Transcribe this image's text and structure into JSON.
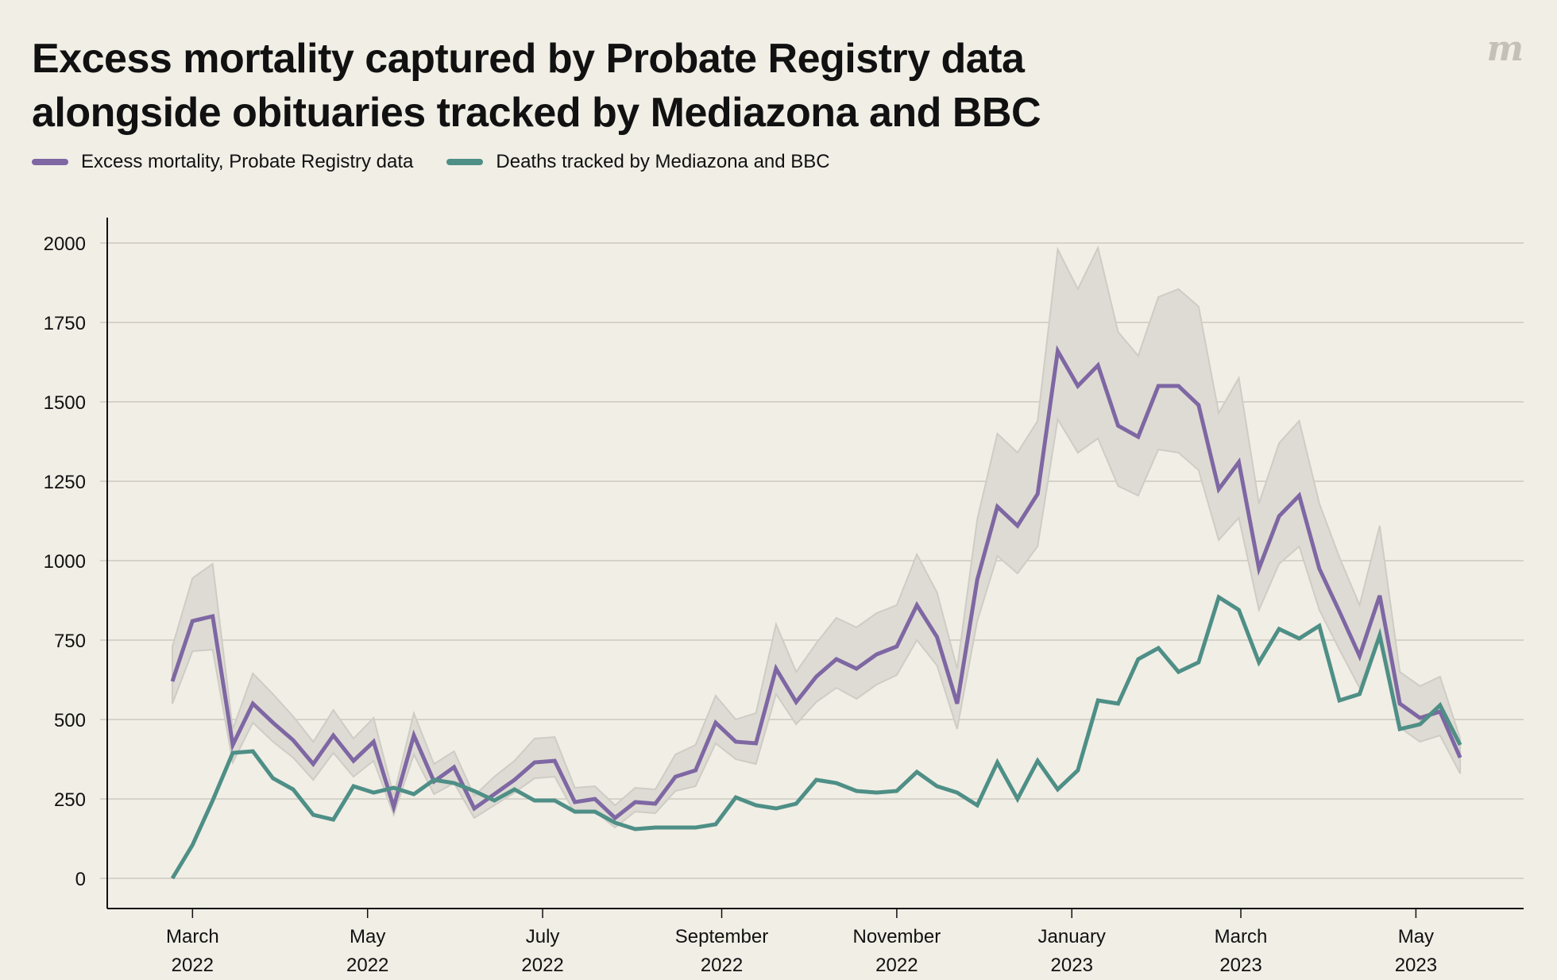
{
  "header": {
    "title_line1": "Excess mortality captured by Probate Registry data",
    "title_line2": "alongside obituaries tracked by Mediazona and BBC",
    "logo": "m"
  },
  "legend": [
    {
      "label": "Excess mortality, Probate Registry data",
      "color": "#7e67a3"
    },
    {
      "label": "Deaths tracked by Mediazona and BBC",
      "color": "#4e8f86"
    }
  ],
  "chart_data": {
    "type": "line",
    "title": "Excess mortality captured by Probate Registry data alongside obituaries tracked by Mediazona and BBC",
    "xlabel": "",
    "ylabel": "",
    "ylim": [
      0,
      2000
    ],
    "yticks": [
      0,
      250,
      500,
      750,
      1000,
      1250,
      1500,
      1750,
      2000
    ],
    "xticks": [
      {
        "week": 1,
        "month": "March",
        "year": "2022"
      },
      {
        "week": 9.7,
        "month": "May",
        "year": "2022"
      },
      {
        "week": 18.4,
        "month": "July",
        "year": "2022"
      },
      {
        "week": 27.3,
        "month": "September",
        "year": "2022"
      },
      {
        "week": 36,
        "month": "November",
        "year": "2022"
      },
      {
        "week": 44.7,
        "month": "January",
        "year": "2023"
      },
      {
        "week": 53.1,
        "month": "March",
        "year": "2023"
      },
      {
        "week": 61.8,
        "month": "May",
        "year": "2023"
      }
    ],
    "grid": true,
    "legend_position": "top-left",
    "x_unit": "week index (weekly data starting late Feb 2022)",
    "series": [
      {
        "name": "Excess mortality, Probate Registry data",
        "color": "#7e67a3",
        "values": [
          620,
          810,
          825,
          420,
          550,
          490,
          435,
          360,
          450,
          370,
          430,
          225,
          450,
          305,
          350,
          220,
          265,
          310,
          365,
          370,
          240,
          250,
          190,
          240,
          235,
          320,
          340,
          490,
          430,
          425,
          660,
          555,
          635,
          690,
          660,
          705,
          730,
          860,
          760,
          550,
          940,
          1170,
          1110,
          1210,
          1660,
          1550,
          1615,
          1425,
          1390,
          1550,
          1550,
          1490,
          1225,
          1310,
          975,
          1140,
          1205,
          975,
          840,
          700,
          890,
          550,
          505,
          525,
          380
        ],
        "band_upper": [
          730,
          945,
          990,
          470,
          645,
          580,
          510,
          430,
          530,
          440,
          505,
          260,
          520,
          360,
          400,
          260,
          320,
          370,
          440,
          445,
          285,
          290,
          230,
          285,
          280,
          390,
          420,
          575,
          500,
          520,
          800,
          650,
          740,
          820,
          790,
          835,
          860,
          1020,
          900,
          660,
          1130,
          1400,
          1340,
          1440,
          1980,
          1855,
          1985,
          1720,
          1645,
          1830,
          1855,
          1800,
          1465,
          1575,
          1180,
          1370,
          1440,
          1180,
          1010,
          860,
          1110,
          650,
          605,
          635,
          440
        ],
        "band_lower": [
          550,
          715,
          720,
          365,
          490,
          430,
          380,
          310,
          395,
          320,
          370,
          200,
          390,
          265,
          300,
          190,
          230,
          270,
          315,
          320,
          205,
          210,
          160,
          210,
          205,
          275,
          290,
          425,
          375,
          360,
          580,
          485,
          555,
          600,
          565,
          610,
          640,
          750,
          670,
          470,
          810,
          1015,
          960,
          1045,
          1445,
          1340,
          1385,
          1235,
          1205,
          1350,
          1340,
          1285,
          1065,
          1135,
          845,
          990,
          1045,
          845,
          720,
          600,
          770,
          475,
          430,
          450,
          330
        ]
      },
      {
        "name": "Deaths tracked by Mediazona and BBC",
        "color": "#4e8f86",
        "values": [
          0,
          105,
          245,
          395,
          400,
          315,
          280,
          200,
          185,
          290,
          270,
          285,
          265,
          310,
          300,
          275,
          245,
          280,
          245,
          245,
          210,
          210,
          175,
          155,
          160,
          160,
          160,
          170,
          255,
          230,
          220,
          235,
          310,
          300,
          275,
          270,
          275,
          335,
          290,
          270,
          230,
          365,
          250,
          370,
          280,
          340,
          560,
          550,
          690,
          725,
          650,
          680,
          885,
          845,
          680,
          785,
          755,
          795,
          560,
          580,
          765,
          470,
          485,
          545,
          420
        ]
      }
    ]
  }
}
